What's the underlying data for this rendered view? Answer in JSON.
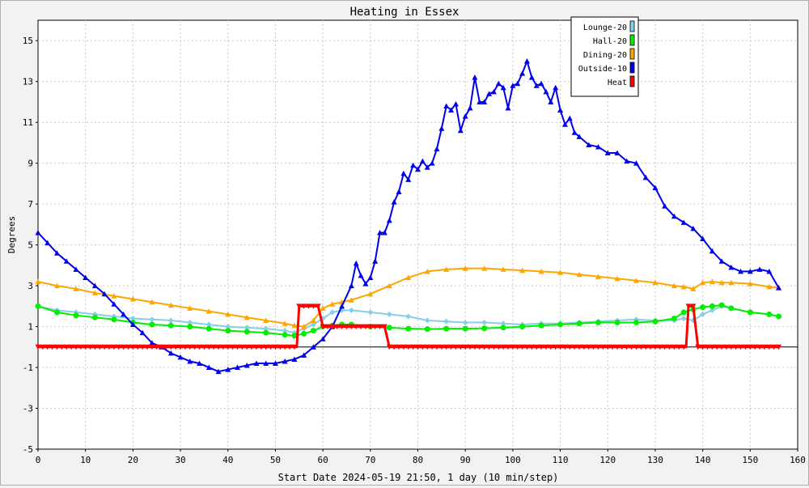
{
  "chart_data": {
    "type": "line",
    "title": "Heating in Essex",
    "xlabel": "Start Date 2024-05-19 21:50, 1 day (10 min/step)",
    "ylabel": "Degrees",
    "xlim": [
      0,
      160
    ],
    "ylim": [
      -5,
      16
    ],
    "xticks": [
      0,
      10,
      20,
      30,
      40,
      50,
      60,
      70,
      80,
      90,
      100,
      110,
      120,
      130,
      140,
      150,
      160
    ],
    "yticks": [
      -5,
      -3,
      -1,
      1,
      3,
      5,
      7,
      9,
      11,
      13,
      15
    ],
    "grid": true,
    "legend_position": "top-right",
    "series": [
      {
        "name": "Lounge-20",
        "color": "#87ceeb",
        "marker": "diamond",
        "x": [
          0,
          4,
          8,
          12,
          16,
          20,
          24,
          28,
          32,
          36,
          40,
          44,
          48,
          52,
          54,
          56,
          58,
          60,
          62,
          64,
          66,
          70,
          74,
          78,
          82,
          86,
          90,
          94,
          98,
          102,
          106,
          110,
          114,
          118,
          122,
          126,
          130,
          134,
          136,
          138,
          140,
          142,
          144,
          146,
          150,
          154,
          156
        ],
        "y": [
          2.0,
          1.8,
          1.7,
          1.6,
          1.5,
          1.4,
          1.35,
          1.3,
          1.2,
          1.1,
          1.0,
          0.95,
          0.9,
          0.8,
          0.7,
          0.9,
          1.1,
          1.4,
          1.7,
          1.8,
          1.8,
          1.7,
          1.6,
          1.5,
          1.3,
          1.25,
          1.2,
          1.2,
          1.15,
          1.1,
          1.15,
          1.15,
          1.2,
          1.25,
          1.3,
          1.35,
          1.3,
          1.3,
          1.4,
          1.3,
          1.6,
          1.8,
          2.0,
          1.9,
          1.7,
          1.6,
          1.5
        ]
      },
      {
        "name": "Hall-20",
        "color": "#00ee00",
        "marker": "circle",
        "x": [
          0,
          4,
          8,
          12,
          16,
          20,
          24,
          28,
          32,
          36,
          40,
          44,
          48,
          52,
          54,
          56,
          58,
          60,
          62,
          64,
          66,
          70,
          74,
          78,
          82,
          86,
          90,
          94,
          98,
          102,
          106,
          110,
          114,
          118,
          122,
          126,
          130,
          134,
          136,
          138,
          140,
          142,
          144,
          146,
          150,
          154,
          156
        ],
        "y": [
          2.0,
          1.7,
          1.55,
          1.45,
          1.35,
          1.2,
          1.1,
          1.05,
          1.0,
          0.9,
          0.8,
          0.75,
          0.7,
          0.6,
          0.55,
          0.65,
          0.8,
          1.0,
          1.05,
          1.1,
          1.1,
          1.0,
          0.95,
          0.9,
          0.88,
          0.9,
          0.9,
          0.92,
          0.95,
          1.0,
          1.05,
          1.1,
          1.15,
          1.2,
          1.2,
          1.2,
          1.25,
          1.4,
          1.7,
          1.85,
          1.95,
          2.0,
          2.05,
          1.9,
          1.7,
          1.6,
          1.5
        ]
      },
      {
        "name": "Dining-20",
        "color": "#ffa500",
        "marker": "triangle",
        "x": [
          0,
          4,
          8,
          12,
          16,
          20,
          24,
          28,
          32,
          36,
          40,
          44,
          48,
          52,
          54,
          56,
          58,
          60,
          62,
          64,
          66,
          70,
          74,
          78,
          82,
          86,
          90,
          94,
          98,
          102,
          106,
          110,
          114,
          118,
          122,
          126,
          130,
          134,
          136,
          138,
          140,
          142,
          144,
          146,
          150,
          154,
          156
        ],
        "y": [
          3.2,
          3.0,
          2.85,
          2.65,
          2.5,
          2.35,
          2.2,
          2.05,
          1.9,
          1.75,
          1.6,
          1.45,
          1.3,
          1.15,
          1.05,
          1.0,
          1.3,
          1.9,
          2.1,
          2.2,
          2.3,
          2.6,
          3.0,
          3.4,
          3.7,
          3.8,
          3.85,
          3.85,
          3.8,
          3.75,
          3.7,
          3.65,
          3.55,
          3.45,
          3.35,
          3.25,
          3.15,
          3.0,
          2.95,
          2.85,
          3.15,
          3.2,
          3.15,
          3.15,
          3.1,
          2.95,
          2.9
        ]
      },
      {
        "name": "Outside-10",
        "color": "#0000ee",
        "marker": "triangle",
        "x": [
          0,
          2,
          4,
          6,
          8,
          10,
          12,
          14,
          16,
          18,
          20,
          22,
          24,
          26,
          28,
          30,
          32,
          34,
          36,
          38,
          40,
          42,
          44,
          46,
          48,
          50,
          52,
          54,
          56,
          58,
          60,
          62,
          64,
          66,
          67,
          68,
          69,
          70,
          71,
          72,
          73,
          74,
          75,
          76,
          77,
          78,
          79,
          80,
          81,
          82,
          83,
          84,
          85,
          86,
          87,
          88,
          89,
          90,
          91,
          92,
          93,
          94,
          95,
          96,
          97,
          98,
          99,
          100,
          101,
          102,
          103,
          104,
          105,
          106,
          107,
          108,
          109,
          110,
          111,
          112,
          113,
          114,
          116,
          118,
          120,
          122,
          124,
          126,
          128,
          130,
          132,
          134,
          136,
          138,
          140,
          142,
          144,
          146,
          148,
          150,
          152,
          154,
          156
        ],
        "y": [
          5.6,
          5.1,
          4.6,
          4.2,
          3.8,
          3.4,
          3.0,
          2.6,
          2.1,
          1.6,
          1.1,
          0.7,
          0.2,
          0.0,
          -0.3,
          -0.5,
          -0.7,
          -0.8,
          -1.0,
          -1.2,
          -1.1,
          -1.0,
          -0.9,
          -0.8,
          -0.8,
          -0.8,
          -0.7,
          -0.6,
          -0.4,
          0.0,
          0.4,
          1.0,
          2.0,
          3.0,
          4.1,
          3.5,
          3.1,
          3.4,
          4.2,
          5.6,
          5.6,
          6.2,
          7.1,
          7.6,
          8.5,
          8.2,
          8.9,
          8.7,
          9.1,
          8.8,
          9.0,
          9.7,
          10.7,
          11.8,
          11.6,
          11.9,
          10.6,
          11.3,
          11.7,
          13.2,
          12.0,
          12.0,
          12.4,
          12.5,
          12.9,
          12.7,
          11.7,
          12.8,
          12.9,
          13.4,
          14.0,
          13.2,
          12.8,
          12.9,
          12.5,
          12.0,
          12.7,
          11.6,
          10.9,
          11.2,
          10.5,
          10.3,
          9.9,
          9.8,
          9.5,
          9.5,
          9.1,
          9.0,
          8.3,
          7.8,
          6.9,
          6.4,
          6.1,
          5.8,
          5.3,
          4.7,
          4.2,
          3.9,
          3.7,
          3.7,
          3.8,
          3.7,
          2.9
        ]
      },
      {
        "name": "Heat",
        "color": "#ff0000",
        "marker": "triangle-down",
        "x": [
          0,
          54.5,
          55,
          59,
          60,
          61,
          73,
          74,
          136.5,
          137,
          138,
          139,
          156
        ],
        "y": [
          0,
          0,
          2,
          2,
          1,
          1,
          1,
          0,
          0,
          2,
          2,
          0,
          0
        ]
      }
    ]
  }
}
